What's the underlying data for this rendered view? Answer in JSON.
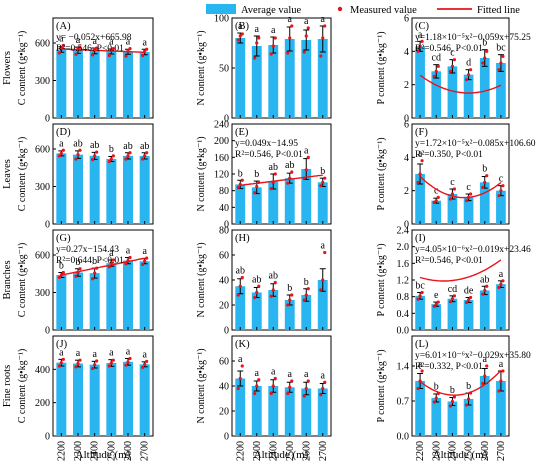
{
  "legend": {
    "average": "Average value",
    "measured": "Measured value",
    "fitted": "Fitted line"
  },
  "colors": {
    "bar": "#29b6f0",
    "error": "#000000",
    "point": "#e8131b",
    "fit": "#e8131b"
  },
  "row_labels": [
    "Flowers",
    "Leaves",
    "Branches",
    "Fine roots"
  ],
  "xlabel": "Altitude (m)",
  "categories": [
    "2200",
    "2300",
    "2400",
    "2500",
    "2600",
    "2700"
  ],
  "chart_data": [
    {
      "panel": "(A)",
      "type": "bar",
      "ylabel": "C content (g•kg⁻¹)",
      "ylim": [
        0,
        800
      ],
      "yticks": [
        "0",
        "300",
        "600"
      ],
      "ytick_values": [
        0,
        300,
        600
      ],
      "values": [
        548,
        542,
        537,
        532,
        530,
        528
      ],
      "errors": [
        22,
        25,
        23,
        20,
        20,
        22
      ],
      "letters": [
        "a",
        "a",
        "a",
        "a",
        "a",
        "a"
      ],
      "measured": [
        [
          520,
          560,
          580
        ],
        [
          510,
          555,
          565
        ],
        [
          505,
          550,
          560
        ],
        [
          500,
          545,
          555
        ],
        [
          495,
          540,
          555
        ],
        [
          500,
          535,
          550
        ]
      ],
      "fit": {
        "type": "linear",
        "a": -0.052,
        "b": 665.98,
        "eq": [
          "y= −0.052x+665.98",
          "R²=0.546, P<0.01"
        ]
      }
    },
    {
      "panel": "(B)",
      "type": "bar",
      "ylabel": "N content (g•kg⁻¹)",
      "ylim": [
        0,
        100
      ],
      "yticks": [
        "0",
        "50",
        "100"
      ],
      "ytick_values": [
        0,
        50,
        100
      ],
      "values": [
        80,
        72,
        73,
        79,
        78,
        79
      ],
      "errors": [
        5,
        10,
        8,
        12,
        10,
        13
      ],
      "letters": [
        "a",
        "a",
        "a",
        "a",
        "a",
        "a"
      ],
      "measured": [
        [
          78,
          82,
          84
        ],
        [
          60,
          75,
          80
        ],
        [
          64,
          72,
          80
        ],
        [
          65,
          80,
          92
        ],
        [
          66,
          82,
          90
        ],
        [
          62,
          80,
          92
        ]
      ]
    },
    {
      "panel": "(C)",
      "type": "bar",
      "ylabel": "P content (g•kg⁻¹)",
      "ylim": [
        0,
        6
      ],
      "yticks": [
        "0",
        "2",
        "4",
        "6"
      ],
      "ytick_values": [
        0,
        2,
        4,
        6
      ],
      "values": [
        4.3,
        2.8,
        3.1,
        2.6,
        3.6,
        3.3
      ],
      "errors": [
        0.3,
        0.4,
        0.4,
        0.3,
        0.5,
        0.5
      ],
      "letters": [
        "a",
        "cd",
        "c",
        "d",
        "b",
        "bc"
      ],
      "measured": [
        [
          4.0,
          4.3,
          4.6
        ],
        [
          2.5,
          2.8,
          3.1
        ],
        [
          2.8,
          3.1,
          3.5
        ],
        [
          2.3,
          2.6,
          2.9
        ],
        [
          3.3,
          3.6,
          4.0
        ],
        [
          2.9,
          3.3,
          3.7
        ]
      ],
      "fit": {
        "type": "quad",
        "a": 1.18e-05,
        "b": -0.059,
        "c": 75.25,
        "eq": [
          "y=1.18×10⁻⁵x²−0.059x+75.25",
          "R²=0.546, P<0.01"
        ]
      }
    },
    {
      "panel": "(D)",
      "type": "bar",
      "ylabel": "C content (g•kg⁻¹)",
      "ylim": [
        0,
        800
      ],
      "yticks": [
        "0",
        "300",
        "600"
      ],
      "ytick_values": [
        0,
        300,
        600
      ],
      "values": [
        565,
        555,
        545,
        520,
        545,
        545
      ],
      "errors": [
        20,
        30,
        28,
        20,
        25,
        25
      ],
      "letters": [
        "a",
        "ab",
        "ab",
        "b",
        "ab",
        "ab"
      ],
      "measured": [
        [
          545,
          565,
          590
        ],
        [
          520,
          555,
          590
        ],
        [
          515,
          545,
          575
        ],
        [
          500,
          520,
          545
        ],
        [
          520,
          545,
          570
        ],
        [
          520,
          545,
          570
        ]
      ]
    },
    {
      "panel": "(E)",
      "type": "bar",
      "ylabel": "N content (g•kg⁻¹)",
      "ylim": [
        0,
        240
      ],
      "yticks": [
        "0",
        "40",
        "80",
        "120",
        "160",
        "200",
        "240"
      ],
      "ytick_values": [
        0,
        40,
        80,
        120,
        160,
        200,
        240
      ],
      "values": [
        95,
        88,
        102,
        110,
        132,
        100
      ],
      "errors": [
        10,
        15,
        18,
        12,
        25,
        10
      ],
      "letters": [
        "b",
        "b",
        "ab",
        "ab",
        "a",
        "b"
      ],
      "measured": [
        [
          88,
          95,
          105
        ],
        [
          75,
          90,
          100
        ],
        [
          85,
          100,
          120
        ],
        [
          98,
          110,
          125
        ],
        [
          110,
          130,
          160
        ],
        [
          92,
          100,
          110
        ]
      ],
      "fit": {
        "type": "linear",
        "a": 0.049,
        "b": -14.95,
        "eq": [
          "y=0.049x−14.95",
          "R²=0.546, P<0.01"
        ]
      }
    },
    {
      "panel": "(F)",
      "type": "bar",
      "ylabel": "P content (g•kg⁻¹)",
      "ylim": [
        0,
        6
      ],
      "yticks": [
        "0",
        "2",
        "4",
        "6"
      ],
      "ytick_values": [
        0,
        2,
        4,
        6
      ],
      "values": [
        3.0,
        1.4,
        1.8,
        1.6,
        2.5,
        2.0
      ],
      "errors": [
        0.6,
        0.15,
        0.3,
        0.2,
        0.35,
        0.3
      ],
      "letters": [
        "a",
        "c",
        "c",
        "c",
        "b",
        "c"
      ],
      "measured": [
        [
          2.5,
          3.0,
          3.8
        ],
        [
          1.3,
          1.4,
          1.6
        ],
        [
          1.5,
          1.8,
          2.1
        ],
        [
          1.4,
          1.6,
          1.8
        ],
        [
          2.2,
          2.5,
          2.9
        ],
        [
          1.7,
          2.0,
          2.3
        ]
      ],
      "fit": {
        "type": "quad",
        "a": 1.72e-05,
        "b": -0.085,
        "c": 106.6,
        "eq": [
          "y=1.72×10⁻⁵x²−0.085x+106.60",
          "R²=0.350, P<0.01"
        ]
      }
    },
    {
      "panel": "(G)",
      "type": "bar",
      "ylabel": "C content (g•kg⁻¹)",
      "ylim": [
        0,
        800
      ],
      "yticks": [
        "0",
        "300",
        "600"
      ],
      "ytick_values": [
        0,
        300,
        600
      ],
      "values": [
        440,
        460,
        455,
        535,
        555,
        550
      ],
      "errors": [
        20,
        30,
        40,
        25,
        25,
        20
      ],
      "letters": [
        "b",
        "b",
        "b",
        "a",
        "a",
        "a"
      ],
      "measured": [
        [
          420,
          440,
          460
        ],
        [
          430,
          460,
          490
        ],
        [
          410,
          455,
          495
        ],
        [
          505,
          535,
          560
        ],
        [
          530,
          555,
          580
        ],
        [
          525,
          550,
          575
        ]
      ],
      "fit": {
        "type": "linear",
        "a": 0.27,
        "b": -154.43,
        "eq": [
          "y=0.27x−154.43",
          "R²=0.644, P<0.01"
        ]
      }
    },
    {
      "panel": "(H)",
      "type": "bar",
      "ylabel": "N content (g•kg⁻¹)",
      "ylim": [
        0,
        80
      ],
      "yticks": [
        "0",
        "20",
        "40",
        "60",
        "80"
      ],
      "ytick_values": [
        0,
        20,
        40,
        60,
        80
      ],
      "values": [
        35,
        30,
        32,
        24,
        28,
        40
      ],
      "errors": [
        6,
        4,
        5,
        4,
        5,
        9
      ],
      "letters": [
        "ab",
        "ab",
        "ab",
        "b",
        "b",
        "a"
      ],
      "measured": [
        [
          28,
          35,
          42
        ],
        [
          26,
          30,
          35
        ],
        [
          27,
          32,
          38
        ],
        [
          20,
          24,
          28
        ],
        [
          24,
          28,
          33
        ],
        [
          32,
          40,
          62
        ]
      ]
    },
    {
      "panel": "(I)",
      "type": "bar",
      "ylabel": "P content (g•kg⁻¹)",
      "ylim": [
        0,
        2.4
      ],
      "yticks": [
        "0.0",
        "0.4",
        "0.8",
        "1.2",
        "1.6",
        "2.0",
        "2.4"
      ],
      "ytick_values": [
        0,
        0.4,
        0.8,
        1.2,
        1.6,
        2.0,
        2.4
      ],
      "values": [
        0.82,
        0.62,
        0.75,
        0.72,
        0.95,
        1.1
      ],
      "errors": [
        0.08,
        0.05,
        0.07,
        0.06,
        0.1,
        0.08
      ],
      "letters": [
        "bc",
        "e",
        "cd",
        "de",
        "ab",
        "a"
      ],
      "measured": [
        [
          0.74,
          0.82,
          0.9
        ],
        [
          0.57,
          0.62,
          0.67
        ],
        [
          0.68,
          0.75,
          0.82
        ],
        [
          0.66,
          0.72,
          0.78
        ],
        [
          0.86,
          0.95,
          1.05
        ],
        [
          1.02,
          1.1,
          1.18
        ]
      ],
      "fit": {
        "type": "quad",
        "a": 4.05e-06,
        "b": -0.019,
        "c": 23.46,
        "eq": [
          "y=4.05×10⁻⁶x²−0.019x+23.46",
          "R²=0.546, P<0.01"
        ]
      }
    },
    {
      "panel": "(J)",
      "type": "bar",
      "ylabel": "C content (g•kg⁻¹)",
      "ylim": [
        0,
        600
      ],
      "yticks": [
        "0",
        "200",
        "400"
      ],
      "ytick_values": [
        0,
        200,
        400
      ],
      "values": [
        440,
        435,
        428,
        438,
        445,
        430
      ],
      "errors": [
        20,
        20,
        20,
        20,
        20,
        15
      ],
      "letters": [
        "a",
        "a",
        "a",
        "a",
        "a",
        "a"
      ],
      "measured": [
        [
          420,
          440,
          460
        ],
        [
          415,
          435,
          455
        ],
        [
          405,
          428,
          450
        ],
        [
          420,
          438,
          455
        ],
        [
          425,
          445,
          465
        ],
        [
          412,
          430,
          448
        ]
      ]
    },
    {
      "panel": "(K)",
      "type": "bar",
      "ylabel": "N content (g•kg⁻¹)",
      "ylim": [
        0,
        80
      ],
      "yticks": [
        "0",
        "20",
        "40",
        "60"
      ],
      "ytick_values": [
        0,
        20,
        40,
        60
      ],
      "values": [
        46,
        40,
        40,
        39,
        38,
        38
      ],
      "errors": [
        6,
        4,
        5,
        4,
        5,
        4
      ],
      "letters": [
        "a",
        "a",
        "a",
        "a",
        "a",
        "a"
      ],
      "measured": [
        [
          38,
          46,
          56
        ],
        [
          34,
          40,
          45
        ],
        [
          34,
          40,
          46
        ],
        [
          34,
          39,
          44
        ],
        [
          32,
          38,
          44
        ],
        [
          33,
          38,
          43
        ]
      ]
    },
    {
      "panel": "(L)",
      "type": "bar",
      "ylabel": "P content (g•kg⁻¹)",
      "ylim": [
        0,
        2.0
      ],
      "yticks": [
        "0.0",
        "0.7",
        "1.4"
      ],
      "ytick_values": [
        0,
        0.7,
        1.4
      ],
      "values": [
        1.1,
        0.76,
        0.69,
        0.74,
        1.2,
        1.1
      ],
      "errors": [
        0.15,
        0.08,
        0.08,
        0.12,
        0.15,
        0.2
      ],
      "letters": [
        "a",
        "b",
        "b",
        "b",
        "a",
        "a"
      ],
      "measured": [
        [
          0.95,
          1.1,
          1.3
        ],
        [
          0.68,
          0.76,
          0.85
        ],
        [
          0.6,
          0.69,
          0.78
        ],
        [
          0.62,
          0.74,
          0.86
        ],
        [
          1.05,
          1.2,
          1.4
        ],
        [
          0.9,
          1.1,
          1.3
        ]
      ],
      "fit": {
        "type": "quad",
        "a": 6.01e-06,
        "b": -0.029,
        "c": 35.8,
        "eq": [
          "y=6.01×10⁻⁶x²−0.029x+35.80",
          "R²=0.332, P<0.01"
        ]
      }
    }
  ]
}
